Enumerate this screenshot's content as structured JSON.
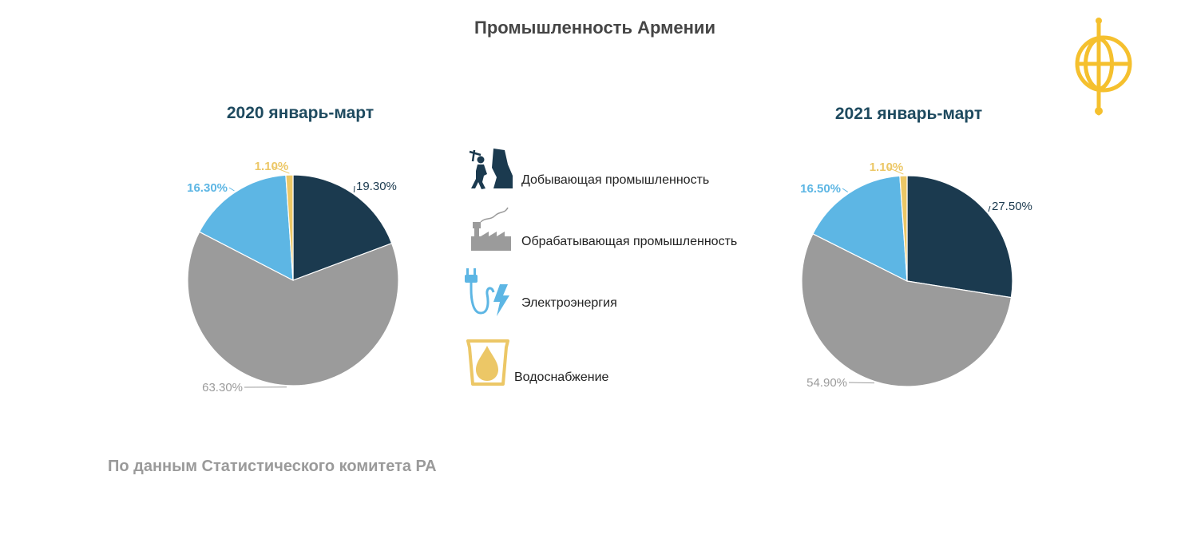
{
  "title": "Промышленность Армении",
  "source": "По данным Статистического комитета РА",
  "colors": {
    "mining": "#1b3a4f",
    "manufacturing": "#9b9b9b",
    "electricity": "#5db6e4",
    "water": "#ecc766",
    "title_dark": "#454545",
    "pie_title": "#1e4a5f",
    "logo": "#f5c02e"
  },
  "legend": [
    {
      "label": "Добывающая промышленность",
      "icon": "miner-icon"
    },
    {
      "label": "Обрабатывающая промышленность",
      "icon": "factory-icon"
    },
    {
      "label": "Электроэнергия",
      "icon": "plug-lightning-icon"
    },
    {
      "label": "Водоснабжение",
      "icon": "water-drop-icon"
    }
  ],
  "chart_data": [
    {
      "type": "pie",
      "title": "2020 январь-март",
      "categories": [
        "Добывающая промышленность",
        "Обрабатывающая промышленность",
        "Электроэнергия",
        "Водоснабжение"
      ],
      "values": [
        19.3,
        63.3,
        16.3,
        1.1
      ],
      "labels": [
        "19.30%",
        "63.30%",
        "16.30%",
        "1.10%"
      ],
      "start_angle": 0,
      "direction": "clockwise"
    },
    {
      "type": "pie",
      "title": "2021 январь-март",
      "categories": [
        "Добывающая промышленность",
        "Обрабатывающая промышленность",
        "Электроэнергия",
        "Водоснабжение"
      ],
      "values": [
        27.5,
        54.9,
        16.5,
        1.1
      ],
      "labels": [
        "27.50%",
        "54.90%",
        "16.50%",
        "1.10%"
      ],
      "start_angle": 0,
      "direction": "clockwise"
    }
  ]
}
